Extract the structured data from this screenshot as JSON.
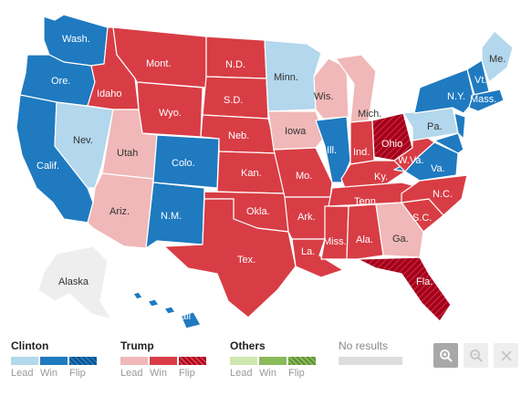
{
  "map": {
    "colors": {
      "clinton_lead": "#b3d7ec",
      "clinton_win": "#1f7ac0",
      "trump_lead": "#f0b8b8",
      "trump_win": "#d83d45",
      "trump_flip": "#a4001d",
      "others_lead": "#cde8b0",
      "others_win": "#8aba5a",
      "no_results": "#dddddd",
      "territory": "#eeeeee"
    },
    "state_labels": {
      "wash": "Wash.",
      "ore": "Ore.",
      "calif": "Calif.",
      "nev": "Nev.",
      "idaho": "Idaho",
      "mont": "Mont.",
      "wyo": "Wyo.",
      "utah": "Utah",
      "ariz": "Ariz.",
      "colo": "Colo.",
      "nm": "N.M.",
      "nd": "N.D.",
      "sd": "S.D.",
      "neb": "Neb.",
      "kan": "Kan.",
      "okla": "Okla.",
      "tex": "Tex.",
      "minn": "Minn.",
      "iowa": "Iowa",
      "mo": "Mo.",
      "ark": "Ark.",
      "la": "La.",
      "wis": "Wis.",
      "ill": "Ill.",
      "mich": "Mich.",
      "ind": "Ind.",
      "ohio": "Ohio",
      "ky": "Ky.",
      "tenn": "Tenn.",
      "miss": "Miss.",
      "ala": "Ala.",
      "ga": "Ga.",
      "fla": "Fla.",
      "sc": "S.C.",
      "nc": "N.C.",
      "va": "Va.",
      "wva": "W.Va.",
      "pa": "Pa.",
      "ny": "N.Y.",
      "vt": "Vt.",
      "mass": "Mass.",
      "me": "Me.",
      "alaska": "Alaska",
      "hawaii": "Hawaii"
    }
  },
  "legend": {
    "clinton": {
      "title": "Clinton",
      "lead": "Lead",
      "win": "Win",
      "flip": "Flip"
    },
    "trump": {
      "title": "Trump",
      "lead": "Lead",
      "win": "Win",
      "flip": "Flip"
    },
    "others": {
      "title": "Others",
      "lead": "Lead",
      "win": "Win",
      "flip": "Flip"
    },
    "no_results": {
      "title": "No results"
    }
  },
  "zoom": {
    "zoom_in_icon": "zoom-in-icon",
    "zoom_out_icon": "zoom-out-icon",
    "close_icon": "close-icon"
  }
}
